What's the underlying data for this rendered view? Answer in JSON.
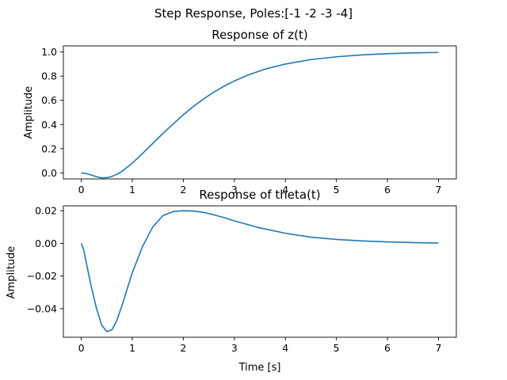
{
  "suptitle": "Step Response, Poles:[-1 -2 -3 -4]",
  "line_color": "#1f77b4",
  "chart_data": [
    {
      "type": "line",
      "title": "Response of z(t)",
      "xlabel": "",
      "ylabel": "Amplitude",
      "xlim": [
        -0.35,
        7.35
      ],
      "ylim": [
        -0.05,
        1.05
      ],
      "xticks": [
        0,
        1,
        2,
        3,
        4,
        5,
        6,
        7
      ],
      "xtick_labels": [
        "0",
        "1",
        "2",
        "3",
        "4",
        "5",
        "6",
        "7"
      ],
      "yticks": [
        0.0,
        0.2,
        0.4,
        0.6,
        0.8,
        1.0
      ],
      "ytick_labels": [
        "0.0",
        "0.2",
        "0.4",
        "0.6",
        "0.8",
        "1.0"
      ],
      "grid": false,
      "series": [
        {
          "x": [
            0,
            0.1,
            0.2,
            0.3,
            0.4,
            0.5,
            0.6,
            0.7,
            0.8,
            1.0,
            1.2,
            1.4,
            1.6,
            1.8,
            2.0,
            2.2,
            2.4,
            2.6,
            2.8,
            3.0,
            3.3,
            3.6,
            4.0,
            4.5,
            5.0,
            5.5,
            6.0,
            6.5,
            7.0
          ],
          "y": [
            0.0,
            -0.006,
            -0.018,
            -0.032,
            -0.041,
            -0.04,
            -0.03,
            -0.012,
            0.013,
            0.08,
            0.16,
            0.243,
            0.326,
            0.404,
            0.48,
            0.55,
            0.612,
            0.668,
            0.717,
            0.76,
            0.814,
            0.858,
            0.9,
            0.937,
            0.96,
            0.976,
            0.986,
            0.992,
            0.996
          ]
        }
      ]
    },
    {
      "type": "line",
      "title": "Response of theta(t)",
      "xlabel": "Time [s]",
      "ylabel": "Amplitude",
      "xlim": [
        -0.35,
        7.35
      ],
      "ylim": [
        -0.0575,
        0.023
      ],
      "xticks": [
        0,
        1,
        2,
        3,
        4,
        5,
        6,
        7
      ],
      "xtick_labels": [
        "0",
        "1",
        "2",
        "3",
        "4",
        "5",
        "6",
        "7"
      ],
      "yticks": [
        0.02,
        0.0,
        -0.02,
        -0.04
      ],
      "ytick_labels": [
        "0.02",
        "0.00",
        "−0.02",
        "−0.04"
      ],
      "grid": false,
      "series": [
        {
          "x": [
            0,
            0.05,
            0.1,
            0.2,
            0.3,
            0.4,
            0.5,
            0.6,
            0.7,
            0.8,
            0.9,
            1.0,
            1.2,
            1.4,
            1.6,
            1.8,
            2.0,
            2.2,
            2.4,
            2.6,
            2.8,
            3.0,
            3.5,
            4.0,
            4.5,
            5.0,
            5.5,
            6.0,
            6.5,
            7.0
          ],
          "y": [
            0.0,
            -0.004,
            -0.012,
            -0.027,
            -0.04,
            -0.05,
            -0.054,
            -0.053,
            -0.047,
            -0.038,
            -0.028,
            -0.018,
            -0.002,
            0.01,
            0.017,
            0.0195,
            0.02,
            0.0198,
            0.019,
            0.0175,
            0.0158,
            0.0138,
            0.0095,
            0.0062,
            0.0038,
            0.0024,
            0.0015,
            0.0009,
            0.0005,
            0.0002
          ]
        }
      ]
    }
  ]
}
